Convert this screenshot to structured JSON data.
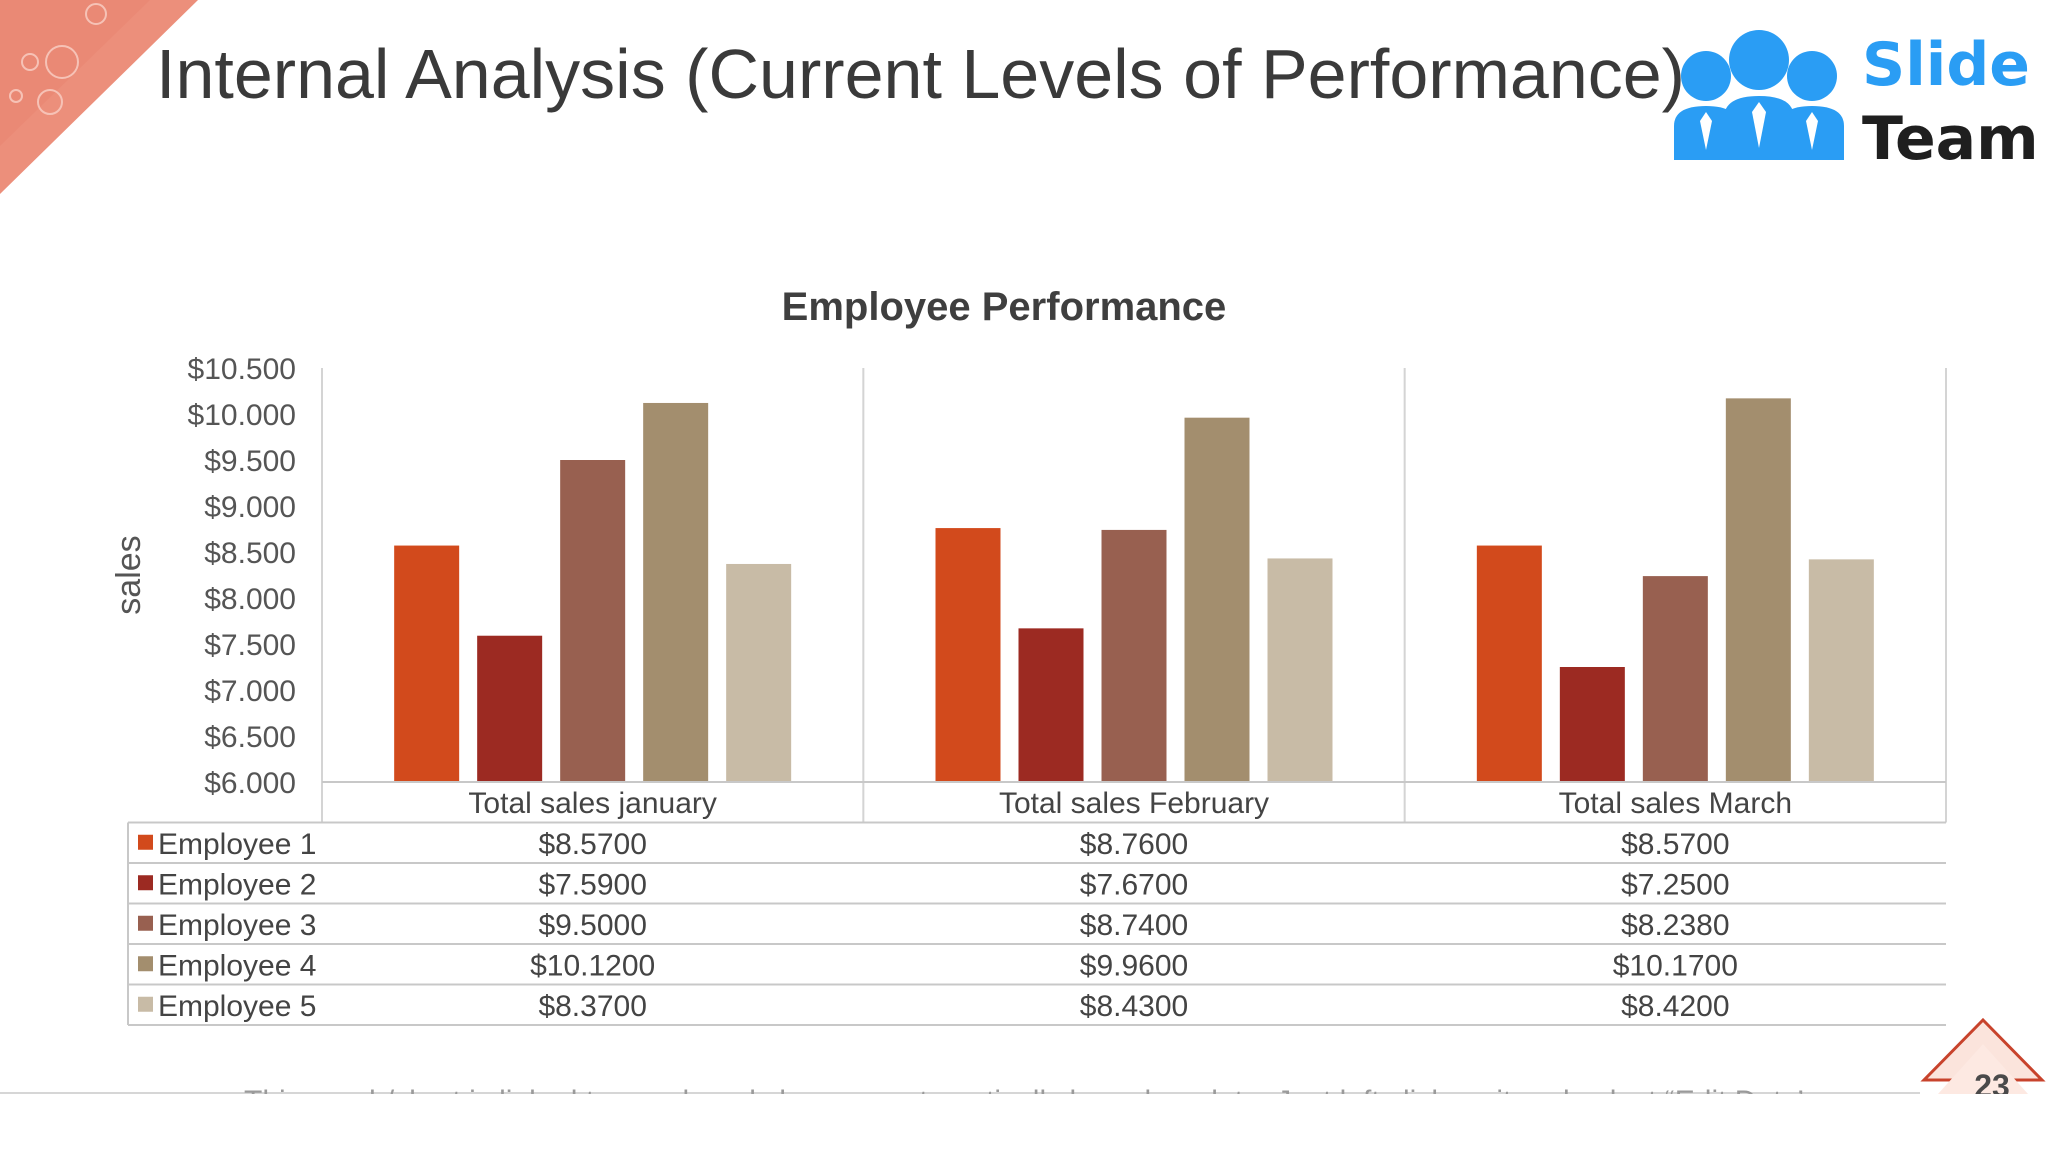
{
  "slide": {
    "title": "Internal Analysis (Current Levels of Performance)",
    "page_number": "23",
    "footer_note": "This graph/chart is linked to excel, and changes automatically based on data. Just left click on it and select “Edit Data”."
  },
  "logo": {
    "line1": "Slide",
    "line2": "Team",
    "icon": "people-group-icon"
  },
  "colors": {
    "employee_1": "#d24a1c",
    "employee_2": "#9c2a22",
    "employee_3": "#986050",
    "employee_4": "#a38e6e",
    "employee_5": "#c8bba6",
    "accent": "#e8836c",
    "logo_blue": "#2a9df4"
  },
  "chart_data": {
    "type": "bar",
    "title": "Employee Performance",
    "ylabel": "sales",
    "xlabel": "",
    "ylim": [
      6.0,
      10.5
    ],
    "y_ticks": [
      "$6.000",
      "$6.500",
      "$7.000",
      "$7.500",
      "$8.000",
      "$8.500",
      "$9.000",
      "$9.500",
      "$10.000",
      "$10.500"
    ],
    "categories": [
      "Total sales january",
      "Total sales February",
      "Total sales March"
    ],
    "gridlines": "vertical category separators",
    "legend": "data table below chart",
    "series": [
      {
        "name": "Employee 1",
        "values": [
          8.57,
          8.76,
          8.57
        ],
        "labels": [
          "$8.5700",
          "$8.7600",
          "$8.5700"
        ]
      },
      {
        "name": "Employee 2",
        "values": [
          7.59,
          7.67,
          7.25
        ],
        "labels": [
          "$7.5900",
          "$7.6700",
          "$7.2500"
        ]
      },
      {
        "name": "Employee 3",
        "values": [
          9.5,
          8.74,
          8.238
        ],
        "labels": [
          "$9.5000",
          "$8.7400",
          "$8.2380"
        ]
      },
      {
        "name": "Employee 4",
        "values": [
          10.12,
          9.96,
          10.17
        ],
        "labels": [
          "$10.1200",
          "$9.9600",
          "$10.1700"
        ]
      },
      {
        "name": "Employee 5",
        "values": [
          8.37,
          8.43,
          8.42
        ],
        "labels": [
          "$8.3700",
          "$8.4300",
          "$8.4200"
        ]
      }
    ]
  }
}
